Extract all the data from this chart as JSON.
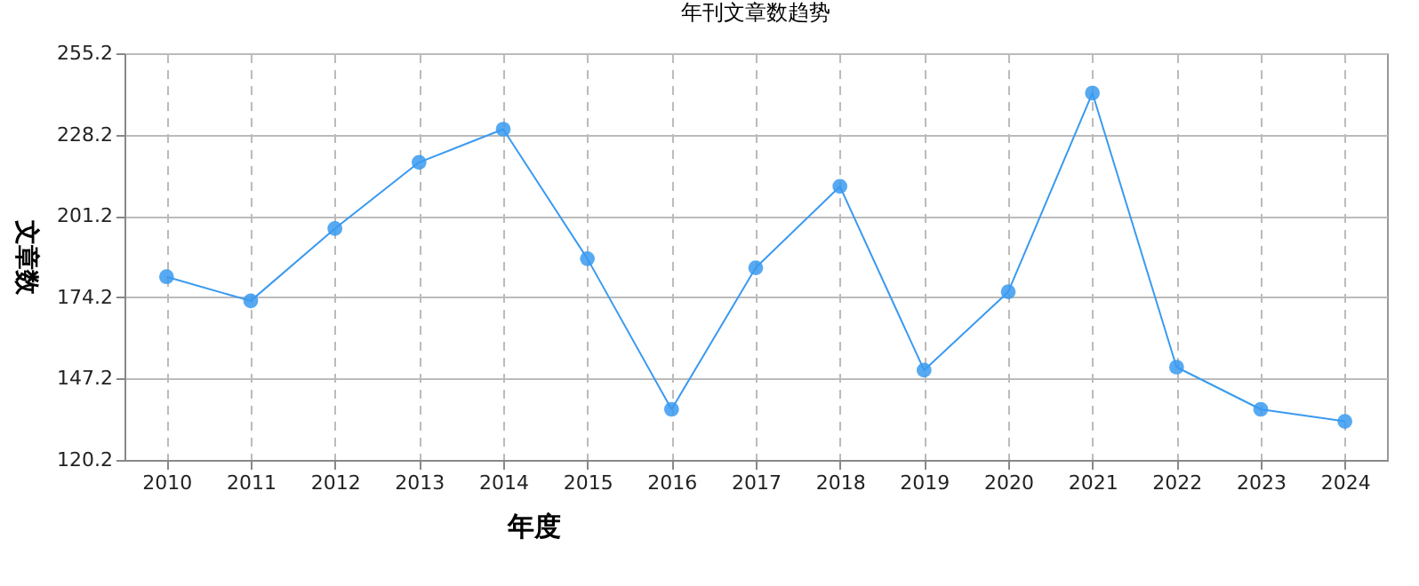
{
  "chart_data": {
    "type": "line",
    "title": "年刊文章数趋势",
    "xlabel": "年度",
    "ylabel": "文章数",
    "categories": [
      "2010",
      "2011",
      "2012",
      "2013",
      "2014",
      "2015",
      "2016",
      "2017",
      "2018",
      "2019",
      "2020",
      "2021",
      "2022",
      "2023",
      "2024"
    ],
    "series": [
      {
        "color": "#3a9af0",
        "values": [
          181,
          173,
          197,
          219,
          230,
          187,
          137,
          184,
          211,
          150,
          176,
          242,
          151,
          137,
          133
        ]
      }
    ],
    "ylim": [
      120.2,
      255.2
    ],
    "yticks": [
      120.2,
      147.2,
      174.2,
      201.2,
      228.2,
      255.2
    ],
    "grid": true,
    "marker": "circle",
    "line_style": "solid"
  }
}
